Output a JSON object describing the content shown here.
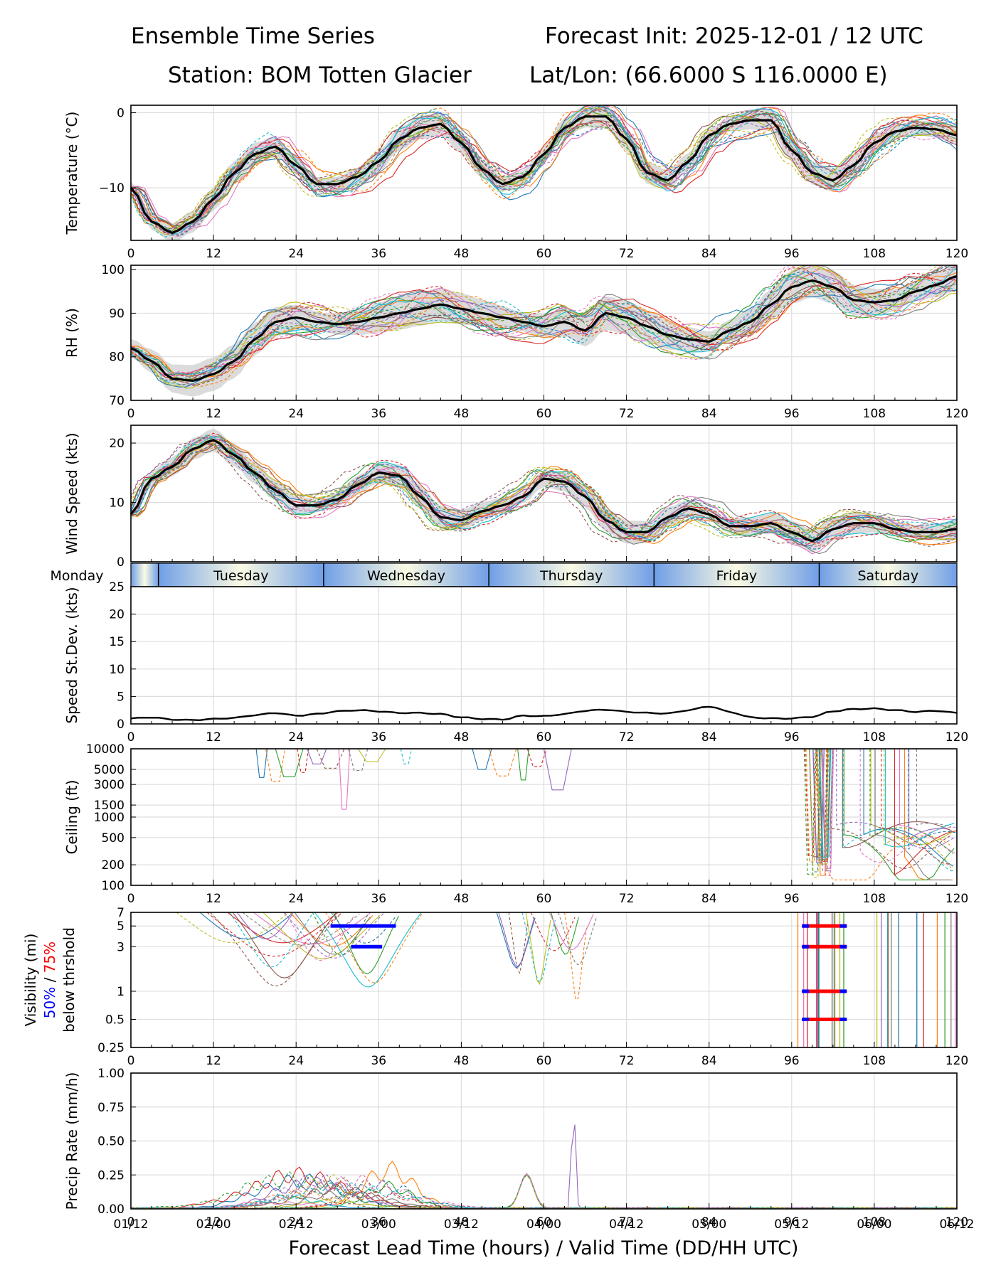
{
  "header": {
    "title_left": "Ensemble Time Series",
    "title_right": "Forecast Init: 2025-12-01 / 12 UTC",
    "station": "Station: BOM Totten Glacier",
    "latlon": "Lat/Lon: (66.6000 S 116.0000 E)"
  },
  "xaxis": {
    "label": "Forecast Lead Time (hours) / Valid Time (DD/HH UTC)",
    "lead_ticks": [
      0,
      12,
      24,
      36,
      48,
      60,
      72,
      84,
      96,
      108,
      120
    ],
    "valid_labels": [
      "01/12",
      "02/00",
      "02/12",
      "03/00",
      "03/12",
      "04/00",
      "04/12",
      "05/00",
      "05/12",
      "06/00",
      "06/12"
    ],
    "range": [
      0,
      120
    ]
  },
  "days": [
    {
      "label": "Monday",
      "start": 0,
      "end": 4
    },
    {
      "label": "Tuesday",
      "start": 4,
      "end": 28
    },
    {
      "label": "Wednesday",
      "start": 28,
      "end": 52
    },
    {
      "label": "Thursday",
      "start": 52,
      "end": 76
    },
    {
      "label": "Friday",
      "start": 76,
      "end": 100
    },
    {
      "label": "Saturday",
      "start": 100,
      "end": 120
    }
  ],
  "vis_ylabel": {
    "line1": "Visibility (mi)",
    "p50": "50%",
    "slash": " / ",
    "p75": "75%",
    "line3": "below thrshold"
  },
  "colors": {
    "ensemble": [
      "#1f77b4",
      "#ff7f0e",
      "#2ca02c",
      "#d62728",
      "#9467bd",
      "#8c564b",
      "#e377c2",
      "#7f7f7f",
      "#bcbd22",
      "#17becf"
    ],
    "mean": "#000000",
    "spread": "#cccccc",
    "p50": "#0000ff",
    "p75": "#ff0000"
  },
  "chart_data": [
    {
      "id": "temperature",
      "type": "line",
      "ylabel": "Temperature (°C)",
      "ylim": [
        -17,
        1
      ],
      "yticks": [
        0,
        -10
      ],
      "x": [
        0,
        3,
        6,
        9,
        12,
        15,
        18,
        21,
        24,
        27,
        30,
        33,
        36,
        39,
        42,
        45,
        48,
        51,
        54,
        57,
        60,
        63,
        66,
        69,
        72,
        75,
        78,
        81,
        84,
        87,
        90,
        93,
        96,
        99,
        102,
        105,
        108,
        111,
        114,
        117,
        120
      ],
      "mean": [
        -10,
        -14.5,
        -16,
        -14.5,
        -11.5,
        -8,
        -5.5,
        -4.5,
        -7,
        -9.5,
        -9.5,
        -8.5,
        -6.5,
        -3.5,
        -2,
        -1.5,
        -4,
        -7.5,
        -9.5,
        -8.5,
        -5.5,
        -2,
        -0.5,
        -0.5,
        -3.5,
        -8,
        -9,
        -6.5,
        -3,
        -1.5,
        -1,
        -1,
        -5,
        -8,
        -9,
        -7,
        -4,
        -2.5,
        -2,
        -2.2,
        -3
      ],
      "spread": 1.2
    },
    {
      "id": "rh",
      "type": "line",
      "ylabel": "RH (%)",
      "ylim": [
        70,
        101
      ],
      "yticks": [
        70,
        80,
        90,
        100
      ],
      "x": [
        0,
        3,
        6,
        9,
        12,
        15,
        18,
        21,
        24,
        27,
        30,
        33,
        36,
        39,
        42,
        45,
        48,
        51,
        54,
        57,
        60,
        63,
        66,
        69,
        72,
        75,
        78,
        81,
        84,
        87,
        90,
        93,
        96,
        99,
        102,
        105,
        108,
        111,
        114,
        117,
        120
      ],
      "mean": [
        82,
        79,
        75,
        74.5,
        76,
        79,
        84,
        88,
        89,
        88,
        87.5,
        88,
        89,
        90,
        91,
        92,
        91,
        90,
        89,
        88,
        87,
        88,
        86,
        90,
        89,
        87,
        85,
        84,
        83.5,
        86,
        88,
        92,
        96,
        97.5,
        96,
        93,
        92.5,
        93,
        95,
        96.5,
        98.5
      ],
      "spread": 3
    },
    {
      "id": "wind",
      "type": "line",
      "ylabel": "Wind Speed (kts)",
      "ylim": [
        0,
        23
      ],
      "yticks": [
        0,
        10,
        20
      ],
      "x": [
        0,
        3,
        6,
        9,
        12,
        15,
        18,
        21,
        24,
        27,
        30,
        33,
        36,
        39,
        42,
        45,
        48,
        51,
        54,
        57,
        60,
        63,
        66,
        69,
        72,
        75,
        78,
        81,
        84,
        87,
        90,
        93,
        96,
        99,
        102,
        105,
        108,
        111,
        114,
        117,
        120
      ],
      "mean": [
        8,
        14,
        16,
        19,
        20.5,
        18,
        15,
        12,
        9.5,
        9.5,
        10.5,
        13,
        15,
        14.5,
        11,
        7.5,
        7,
        8.5,
        9.5,
        11,
        14,
        13.5,
        11,
        7,
        5,
        5,
        7.5,
        9,
        8,
        6,
        6,
        6.5,
        5,
        3.5,
        5.5,
        6.5,
        6.5,
        5.5,
        5,
        5,
        5.5
      ],
      "spread": 1.5
    },
    {
      "id": "speed_stdev",
      "type": "line",
      "ylabel": "Speed St.Dev. (kts)",
      "ylim": [
        0,
        25
      ],
      "yticks": [
        0,
        5,
        10,
        15,
        20,
        25
      ],
      "x": [
        0,
        3,
        6,
        9,
        12,
        15,
        18,
        21,
        24,
        27,
        30,
        33,
        36,
        39,
        42,
        45,
        48,
        51,
        54,
        57,
        60,
        63,
        66,
        69,
        72,
        75,
        78,
        81,
        84,
        87,
        90,
        93,
        96,
        99,
        102,
        105,
        108,
        111,
        114,
        117,
        120
      ],
      "values": [
        1,
        1.2,
        0.8,
        0.7,
        0.9,
        1.1,
        1.6,
        2,
        1.5,
        1.8,
        2.3,
        2.5,
        2.3,
        2,
        2,
        1.8,
        1.2,
        0.9,
        0.8,
        1.5,
        1.4,
        1.8,
        2.4,
        2.6,
        2.2,
        2,
        1.9,
        2.5,
        3.2,
        2.2,
        1.2,
        1,
        1,
        1.3,
        2.3,
        2.7,
        2.8,
        2.5,
        2.2,
        2.4,
        2
      ]
    },
    {
      "id": "ceiling",
      "type": "line",
      "ylabel": "Ceiling (ft)",
      "scale": "log",
      "ylim": [
        100,
        10000
      ],
      "yticks": [
        100,
        200,
        500,
        1000,
        1500,
        3000,
        5000,
        10000
      ]
    },
    {
      "id": "visibility",
      "type": "line",
      "scale": "log",
      "ylim": [
        0.25,
        7
      ],
      "yticks": [
        0.25,
        0.5,
        1,
        3,
        5,
        7
      ],
      "threshold_bars": [
        {
          "level": 5,
          "start": 29,
          "end": 38.5,
          "pct": 50
        },
        {
          "level": 3,
          "start": 32,
          "end": 36.5,
          "pct": 50
        },
        {
          "level": 5,
          "start": 97.5,
          "end": 104,
          "pct": 75
        },
        {
          "level": 3,
          "start": 97.5,
          "end": 104,
          "pct": 75
        },
        {
          "level": 1,
          "start": 97.5,
          "end": 104,
          "pct": 75
        },
        {
          "level": 0.5,
          "start": 97.5,
          "end": 104,
          "pct": 75
        }
      ]
    },
    {
      "id": "precip",
      "type": "line",
      "ylabel": "Precip Rate (mm/h)",
      "ylim": [
        0,
        1
      ],
      "yticks": [
        0.0,
        0.25,
        0.5,
        0.75,
        1.0
      ],
      "ytick_labels": [
        "0.00",
        "0.25",
        "0.50",
        "0.75",
        "1.00"
      ]
    }
  ]
}
